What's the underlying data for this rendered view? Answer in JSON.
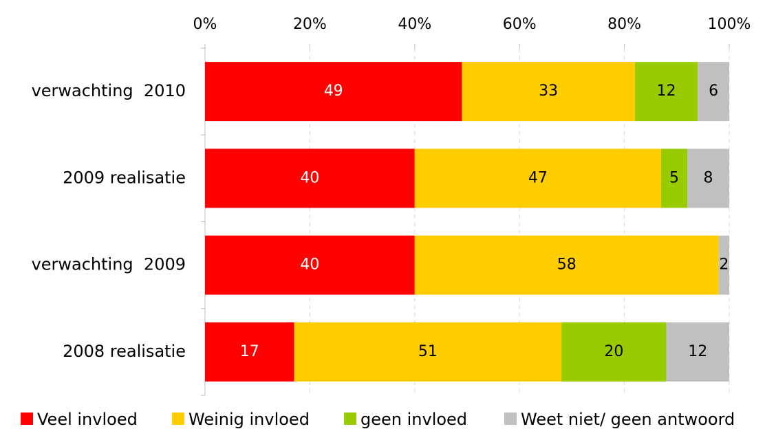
{
  "chart_data": {
    "type": "stacked_bar_horizontal",
    "categories": [
      "verwachting  2010",
      "2009 realisatie",
      "verwachting  2009",
      "2008 realisatie"
    ],
    "series": [
      {
        "name": "Veel invloed",
        "color": "#ff0000",
        "label_color": "#ffffff",
        "values": [
          49,
          40,
          40,
          17
        ]
      },
      {
        "name": "Weinig invloed",
        "color": "#ffcc00",
        "label_color": "#000000",
        "values": [
          33,
          47,
          58,
          51
        ]
      },
      {
        "name": "geen invloed",
        "color": "#99cc00",
        "label_color": "#000000",
        "values": [
          12,
          5,
          0,
          20
        ]
      },
      {
        "name": "Weet niet/ geen antwoord",
        "color": "#c0c0c0",
        "label_color": "#000000",
        "values": [
          6,
          8,
          2,
          12
        ]
      }
    ],
    "xlim": [
      0,
      100
    ],
    "xticks": [
      {
        "value": 0,
        "label": "0%"
      },
      {
        "value": 20,
        "label": "20%"
      },
      {
        "value": 40,
        "label": "40%"
      },
      {
        "value": 60,
        "label": "60%"
      },
      {
        "value": 80,
        "label": "80%"
      },
      {
        "value": 100,
        "label": "100%"
      }
    ],
    "grid": true,
    "legend": "bottom"
  }
}
